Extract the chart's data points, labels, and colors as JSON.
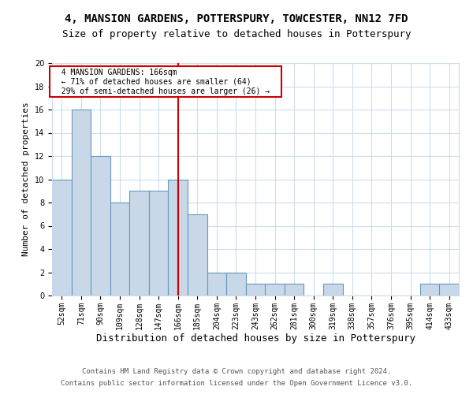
{
  "title1": "4, MANSION GARDENS, POTTERSPURY, TOWCESTER, NN12 7FD",
  "title2": "Size of property relative to detached houses in Potterspury",
  "xlabel": "Distribution of detached houses by size in Potterspury",
  "ylabel": "Number of detached properties",
  "categories": [
    "52sqm",
    "71sqm",
    "90sqm",
    "109sqm",
    "128sqm",
    "147sqm",
    "166sqm",
    "185sqm",
    "204sqm",
    "223sqm",
    "243sqm",
    "262sqm",
    "281sqm",
    "300sqm",
    "319sqm",
    "338sqm",
    "357sqm",
    "376sqm",
    "395sqm",
    "414sqm",
    "433sqm"
  ],
  "values": [
    10,
    16,
    12,
    8,
    9,
    9,
    10,
    7,
    2,
    2,
    1,
    1,
    1,
    0,
    1,
    0,
    0,
    0,
    0,
    1,
    1
  ],
  "bar_color": "#c8d8e8",
  "bar_edge_color": "#6699bb",
  "highlight_index": 6,
  "highlight_line_color": "#cc0000",
  "ylim": [
    0,
    20
  ],
  "yticks": [
    0,
    2,
    4,
    6,
    8,
    10,
    12,
    14,
    16,
    18,
    20
  ],
  "annotation_title": "4 MANSION GARDENS: 166sqm",
  "annotation_line1": "← 71% of detached houses are smaller (64)",
  "annotation_line2": "29% of semi-detached houses are larger (26) →",
  "annotation_box_color": "#ffffff",
  "annotation_box_edge_color": "#cc0000",
  "background_color": "#ffffff",
  "grid_color": "#ccddee",
  "footer1": "Contains HM Land Registry data © Crown copyright and database right 2024.",
  "footer2": "Contains public sector information licensed under the Open Government Licence v3.0.",
  "title1_fontsize": 10,
  "title2_fontsize": 9,
  "xlabel_fontsize": 9,
  "ylabel_fontsize": 8,
  "tick_fontsize": 7,
  "footer_fontsize": 6.5,
  "annot_fontsize": 7
}
